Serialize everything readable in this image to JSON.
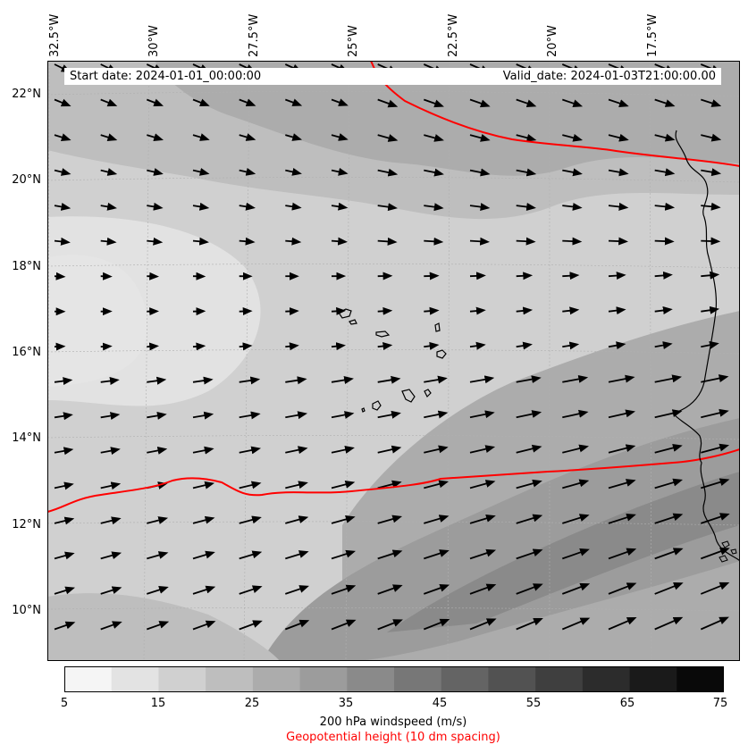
{
  "map": {
    "start_label": "Start date: 2024-01-01_00:00:00",
    "valid_label": "Valid_date: 2024-01-03T21:00:00.00",
    "lon_ticks": [
      "32.5°W",
      "30°W",
      "27.5°W",
      "25°W",
      "22.5°W",
      "20°W",
      "17.5°W"
    ],
    "lat_ticks": [
      "22°N",
      "20°N",
      "18°N",
      "16°N",
      "14°N",
      "12°N",
      "10°N"
    ],
    "colorbar_ticks": [
      "5",
      "15",
      "25",
      "35",
      "45",
      "55",
      "65",
      "75"
    ],
    "colorbar_levels": [
      5,
      10,
      15,
      20,
      25,
      30,
      35,
      40,
      45,
      50,
      55,
      60,
      65,
      70,
      75
    ],
    "colorbar_colors": [
      "#f5f5f5",
      "#e3e3e3",
      "#d0d0d0",
      "#bebebe",
      "#acacac",
      "#9c9c9c",
      "#8a8a8a",
      "#777777",
      "#646464",
      "#525252",
      "#3f3f3f",
      "#2c2c2c",
      "#1a1a1a",
      "#090909"
    ],
    "colorbar_label": "200 hPa windspeed (m/s)",
    "contour_label": "Geopotential height (10 dm spacing)",
    "contour_color": "#ff0000"
  }
}
